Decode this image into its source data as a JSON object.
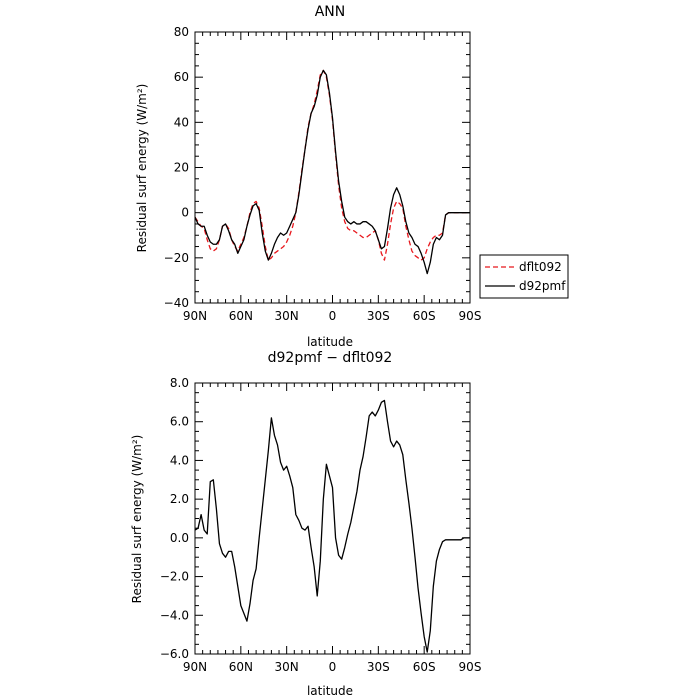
{
  "chart_data": [
    {
      "type": "line",
      "title": "ANN",
      "xlabel": "latitude",
      "ylabel": "Residual surf energy (W/m²)",
      "xlim": [
        90,
        -90
      ],
      "ylim": [
        -40,
        80
      ],
      "x_ticks": [
        90,
        60,
        30,
        0,
        -30,
        -60,
        -90
      ],
      "x_tick_labels": [
        "90N",
        "60N",
        "30N",
        "0",
        "30S",
        "60S",
        "90S"
      ],
      "y_ticks": [
        -40,
        -20,
        0,
        20,
        40,
        60,
        80
      ],
      "y_tick_labels": [
        "−40",
        "−20",
        "0",
        "20",
        "40",
        "60",
        "80"
      ],
      "legend": "outside-right",
      "series": [
        {
          "name": "dflt092",
          "color": "#e8171c",
          "dash": "dashed",
          "x": [
            90,
            88,
            86,
            84,
            82,
            80,
            78,
            76,
            74,
            72,
            70,
            68,
            66,
            64,
            62,
            60,
            58,
            56,
            54,
            52,
            50,
            48,
            46,
            44,
            42,
            40,
            38,
            36,
            34,
            32,
            30,
            28,
            26,
            24,
            22,
            20,
            18,
            16,
            14,
            12,
            10,
            8,
            6,
            4,
            2,
            0,
            -2,
            -4,
            -6,
            -8,
            -10,
            -12,
            -14,
            -16,
            -18,
            -20,
            -22,
            -24,
            -26,
            -28,
            -30,
            -32,
            -34,
            -36,
            -38,
            -40,
            -42,
            -44,
            -46,
            -48,
            -50,
            -52,
            -54,
            -56,
            -58,
            -60,
            -62,
            -64,
            -66,
            -68,
            -70,
            -72,
            -74,
            -76,
            -78,
            -80,
            -82,
            -84,
            -86,
            -88,
            -90
          ],
          "y": [
            -2,
            -4,
            -6,
            -7,
            -12,
            -16,
            -17,
            -16,
            -12,
            -6,
            -5,
            -7,
            -12,
            -15,
            -17,
            -14,
            -11,
            -6,
            0,
            4,
            5,
            2,
            -6,
            -15,
            -21,
            -20,
            -18,
            -17,
            -16,
            -15,
            -13,
            -10,
            -6,
            0,
            9,
            19,
            28,
            38,
            44,
            48,
            54,
            61,
            63,
            60,
            52,
            41,
            26,
            12,
            2,
            -4,
            -7,
            -8,
            -8,
            -9,
            -10,
            -11,
            -11,
            -10,
            -9,
            -8,
            -12,
            -18,
            -21,
            -14,
            -5,
            2,
            5,
            4,
            2,
            -6,
            -12,
            -17,
            -19,
            -20,
            -21,
            -20,
            -16,
            -13,
            -11,
            -10,
            -10,
            -9,
            -1,
            0,
            0,
            0,
            0,
            0,
            0,
            0,
            0
          ]
        },
        {
          "name": "d92pmf",
          "color": "#000000",
          "dash": "solid",
          "x": [
            90,
            88,
            86,
            84,
            82,
            80,
            78,
            76,
            74,
            72,
            70,
            68,
            66,
            64,
            62,
            60,
            58,
            56,
            54,
            52,
            50,
            48,
            46,
            44,
            42,
            40,
            38,
            36,
            34,
            32,
            30,
            28,
            26,
            24,
            22,
            20,
            18,
            16,
            14,
            12,
            10,
            8,
            6,
            4,
            2,
            0,
            -2,
            -4,
            -6,
            -8,
            -10,
            -12,
            -14,
            -16,
            -18,
            -20,
            -22,
            -24,
            -26,
            -28,
            -30,
            -32,
            -34,
            -36,
            -38,
            -40,
            -42,
            -44,
            -46,
            -48,
            -50,
            -52,
            -54,
            -56,
            -58,
            -60,
            -62,
            -64,
            -66,
            -68,
            -70,
            -72,
            -74,
            -76,
            -78,
            -80,
            -82,
            -84,
            -86,
            -88,
            -90
          ],
          "y": [
            -2,
            -5,
            -6,
            -6,
            -10,
            -13,
            -14,
            -14,
            -12,
            -6,
            -5,
            -8,
            -12,
            -14,
            -18,
            -15,
            -12,
            -6,
            -1,
            3,
            4,
            1,
            -9,
            -17,
            -21,
            -18,
            -14,
            -11,
            -9,
            -10,
            -9,
            -6,
            -3,
            0,
            8,
            18,
            28,
            37,
            44,
            47,
            52,
            60,
            63,
            61,
            53,
            42,
            27,
            14,
            5,
            -2,
            -4,
            -5,
            -4,
            -5,
            -5,
            -4,
            -4,
            -5,
            -6,
            -8,
            -12,
            -16,
            -15,
            -7,
            2,
            8,
            11,
            8,
            3,
            -4,
            -9,
            -11,
            -14,
            -15,
            -18,
            -22,
            -27,
            -22,
            -14,
            -11,
            -12,
            -10,
            -1,
            0,
            0,
            0,
            0,
            0,
            0,
            0,
            0
          ]
        }
      ]
    },
    {
      "type": "line",
      "title": "d92pmf − dflt092",
      "xlabel": "latitude",
      "ylabel": "Residual surf energy (W/m²)",
      "xlim": [
        90,
        -90
      ],
      "ylim": [
        -6,
        8
      ],
      "x_ticks": [
        90,
        60,
        30,
        0,
        -30,
        -60,
        -90
      ],
      "x_tick_labels": [
        "90N",
        "60N",
        "30N",
        "0",
        "30S",
        "60S",
        "90S"
      ],
      "y_ticks": [
        -6,
        -4,
        -2,
        0,
        2,
        4,
        6,
        8
      ],
      "y_tick_labels": [
        "−6.0",
        "−4.0",
        "−2.0",
        "0.0",
        "2.0",
        "4.0",
        "6.0",
        "8.0"
      ],
      "series": [
        {
          "color": "#000000",
          "dash": "solid",
          "x": [
            90,
            88,
            86,
            84,
            82,
            80,
            78,
            76,
            74,
            72,
            70,
            68,
            66,
            64,
            62,
            60,
            58,
            56,
            54,
            52,
            50,
            48,
            46,
            44,
            42,
            40,
            38,
            36,
            34,
            32,
            30,
            28,
            26,
            24,
            22,
            20,
            18,
            16,
            14,
            12,
            10,
            8,
            6,
            4,
            2,
            0,
            -2,
            -4,
            -6,
            -8,
            -10,
            -12,
            -14,
            -16,
            -18,
            -20,
            -22,
            -24,
            -26,
            -28,
            -30,
            -32,
            -34,
            -36,
            -38,
            -40,
            -42,
            -44,
            -46,
            -48,
            -50,
            -52,
            -54,
            -56,
            -58,
            -60,
            -62,
            -64,
            -66,
            -68,
            -70,
            -72,
            -74,
            -76,
            -78,
            -80,
            -82,
            -84,
            -86,
            -88,
            -90
          ],
          "y": [
            0.4,
            0.5,
            1.2,
            0.4,
            0.2,
            2.9,
            3.0,
            1.5,
            -0.3,
            -0.8,
            -1.0,
            -0.7,
            -0.7,
            -1.5,
            -2.5,
            -3.5,
            -3.9,
            -4.3,
            -3.4,
            -2.2,
            -1.6,
            0.0,
            1.5,
            3.0,
            4.5,
            6.2,
            5.3,
            4.8,
            3.9,
            3.5,
            3.7,
            3.2,
            2.6,
            1.2,
            0.9,
            0.5,
            0.4,
            0.6,
            -0.5,
            -1.5,
            -3.0,
            -1.2,
            2.0,
            3.8,
            3.2,
            2.6,
            0.0,
            -0.9,
            -1.1,
            -0.5,
            0.2,
            0.8,
            1.6,
            2.4,
            3.5,
            4.2,
            5.2,
            6.3,
            6.5,
            6.3,
            6.6,
            7.0,
            7.1,
            6.0,
            5.0,
            4.7,
            5.0,
            4.8,
            4.3,
            3.0,
            1.8,
            0.5,
            -1.0,
            -2.6,
            -3.9,
            -5.1,
            -5.9,
            -4.8,
            -2.5,
            -1.2,
            -0.6,
            -0.2,
            -0.1,
            -0.1,
            -0.1,
            -0.1,
            -0.1,
            -0.1,
            0.0,
            0.0,
            0.0
          ]
        }
      ]
    }
  ]
}
